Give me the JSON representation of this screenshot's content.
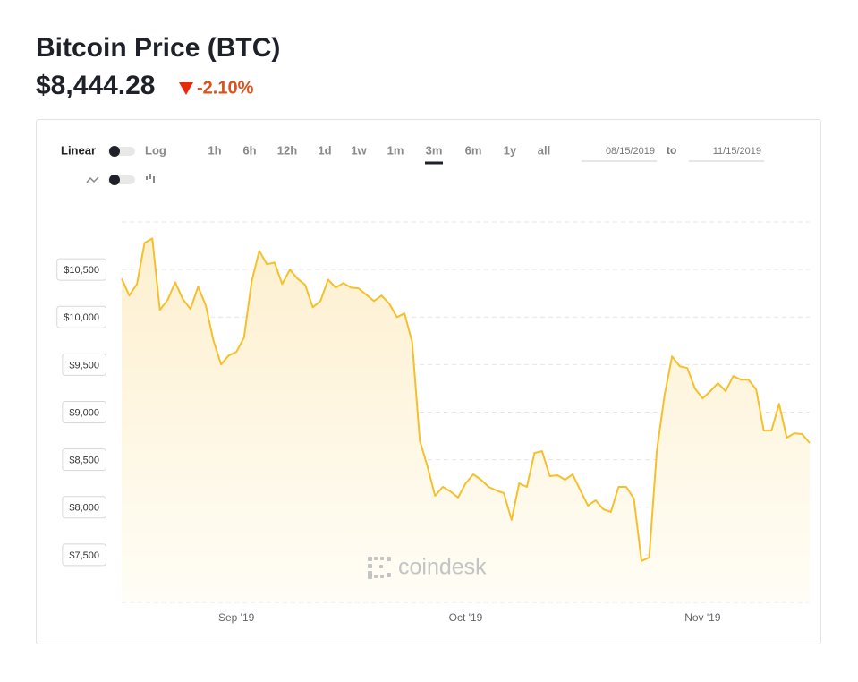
{
  "header": {
    "title": "Bitcoin Price (BTC)",
    "price": "$8,444.28",
    "change": "-2.10%"
  },
  "controls": {
    "scale_left": "Linear",
    "scale_right": "Log",
    "ranges": [
      {
        "label": "1h"
      },
      {
        "label": "6h"
      },
      {
        "label": "12h"
      },
      {
        "label": "1d"
      },
      {
        "label": "1w"
      },
      {
        "label": "1m"
      },
      {
        "label": "3m",
        "selected": true
      },
      {
        "label": "6m"
      },
      {
        "label": "1y"
      },
      {
        "label": "all"
      }
    ],
    "date_from": "08/15/2019",
    "date_to_word": "to",
    "date_to": "11/15/2019"
  },
  "watermark": "coindesk",
  "chart_data": {
    "type": "line",
    "color": "#f5c02c",
    "values": [
      10404,
      10226,
      10348,
      10780,
      10827,
      10075,
      10179,
      10366,
      10188,
      10085,
      10320,
      10122,
      9756,
      9502,
      9596,
      9633,
      9784,
      10376,
      10695,
      10555,
      10573,
      10348,
      10498,
      10404,
      10338,
      10103,
      10169,
      10395,
      10310,
      10357,
      10310,
      10301,
      10235,
      10169,
      10226,
      10141,
      10000,
      10038,
      9737,
      8703,
      8430,
      8120,
      8214,
      8167,
      8102,
      8252,
      8346,
      8289,
      8214,
      8177,
      8148,
      7867,
      8252,
      8214,
      8571,
      8590,
      8327,
      8336,
      8289,
      8346,
      8177,
      8017,
      8073,
      7979,
      7951,
      8214,
      8214,
      8092,
      7434,
      7472,
      8590,
      9173,
      9586,
      9483,
      9464,
      9248,
      9145,
      9220,
      9305,
      9220,
      9380,
      9342,
      9342,
      9239,
      8806,
      8806,
      9088,
      8731,
      8778,
      8769,
      8675
    ],
    "xlim": [
      0,
      90
    ],
    "xticks": [
      {
        "value": 15,
        "label": "Sep '19"
      },
      {
        "value": 45,
        "label": "Oct '19"
      },
      {
        "value": 76,
        "label": "Nov '19"
      }
    ],
    "ylim": [
      7000,
      11000
    ],
    "yticks": [
      {
        "value": 7500,
        "label": "$7,500"
      },
      {
        "value": 8000,
        "label": "$8,000"
      },
      {
        "value": 8500,
        "label": "$8,500"
      },
      {
        "value": 9000,
        "label": "$9,000"
      },
      {
        "value": 9500,
        "label": "$9,500"
      },
      {
        "value": 10000,
        "label": "$10,000"
      },
      {
        "value": 10500,
        "label": "$10,500"
      }
    ],
    "grid": true
  }
}
